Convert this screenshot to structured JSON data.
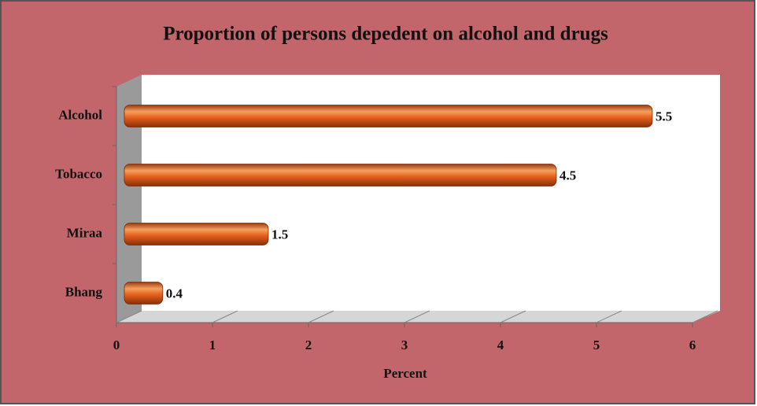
{
  "chart_data": {
    "type": "bar",
    "orientation": "horizontal",
    "title": "Proportion of persons depedent on alcohol and drugs",
    "categories": [
      "Alcohol",
      "Tobacco",
      "Miraa",
      "Bhang"
    ],
    "values": [
      5.5,
      4.5,
      1.5,
      0.4
    ],
    "color": "#e8641e",
    "xlabel": "Percent",
    "xlim": [
      0,
      6
    ],
    "xticks": [
      0,
      1,
      2,
      3,
      4,
      5,
      6
    ]
  }
}
